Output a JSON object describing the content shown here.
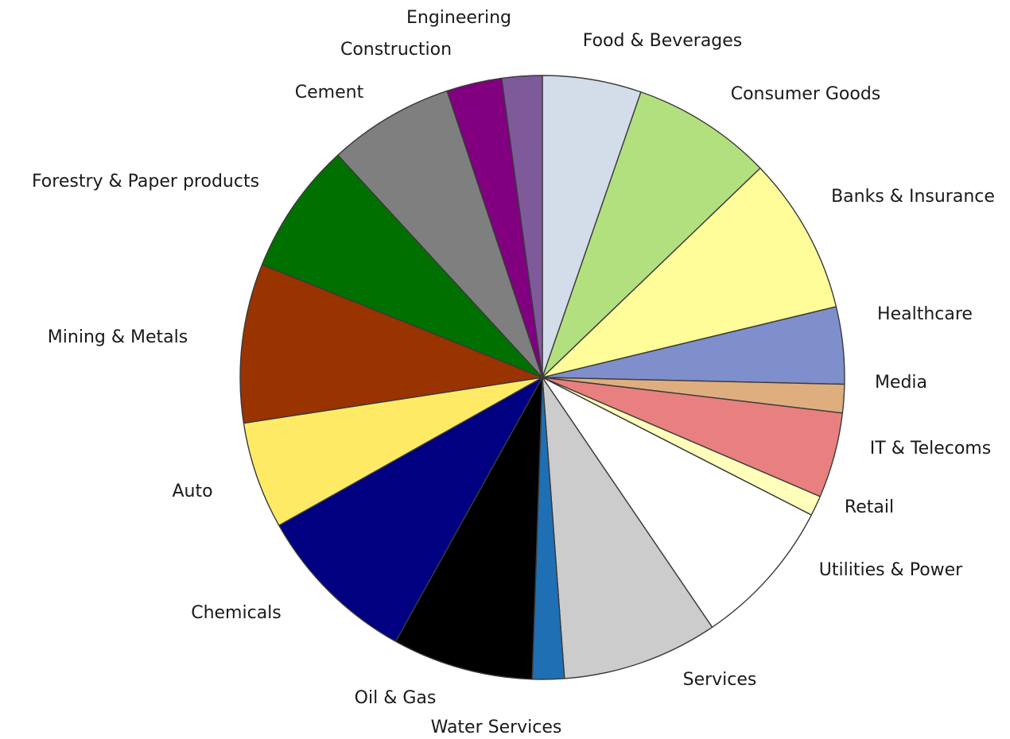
{
  "chart_data": {
    "type": "pie",
    "title": "",
    "start_angle_deg": 0,
    "direction": "clockwise",
    "slices": [
      {
        "label": "Food & Beverages",
        "value": 5.9,
        "color": "#d3dde9"
      },
      {
        "label": "Consumer Goods",
        "value": 8.4,
        "color": "#b3e07f"
      },
      {
        "label": "Banks & Insurance",
        "value": 9.4,
        "color": "#fffd99"
      },
      {
        "label": "Healthcare",
        "value": 4.6,
        "color": "#7f8fcc"
      },
      {
        "label": "Media",
        "value": 1.7,
        "color": "#dfae7f"
      },
      {
        "label": "IT & Telecoms",
        "value": 5.1,
        "color": "#e88080"
      },
      {
        "label": "Retail",
        "value": 1.2,
        "color": "#ffffbb"
      },
      {
        "label": "Utilities & Power",
        "value": 8.9,
        "color": "#ffffff"
      },
      {
        "label": "Services",
        "value": 9.3,
        "color": "#cccccc"
      },
      {
        "label": "Water Services",
        "value": 1.9,
        "color": "#1f6fb4"
      },
      {
        "label": "Oil & Gas",
        "value": 8.4,
        "color": "#000000"
      },
      {
        "label": "Chemicals",
        "value": 9.8,
        "color": "#000080"
      },
      {
        "label": "Auto",
        "value": 6.4,
        "color": "#ffea66"
      },
      {
        "label": "Mining & Metals",
        "value": 9.5,
        "color": "#993300"
      },
      {
        "label": "Forestry & Paper products",
        "value": 7.9,
        "color": "#007000"
      },
      {
        "label": "Cement",
        "value": 7.5,
        "color": "#7f7f7f"
      },
      {
        "label": "Construction",
        "value": 3.3,
        "color": "#800080"
      },
      {
        "label": "Engineering",
        "value": 2.4,
        "color": "#7f5a9a"
      }
    ]
  }
}
